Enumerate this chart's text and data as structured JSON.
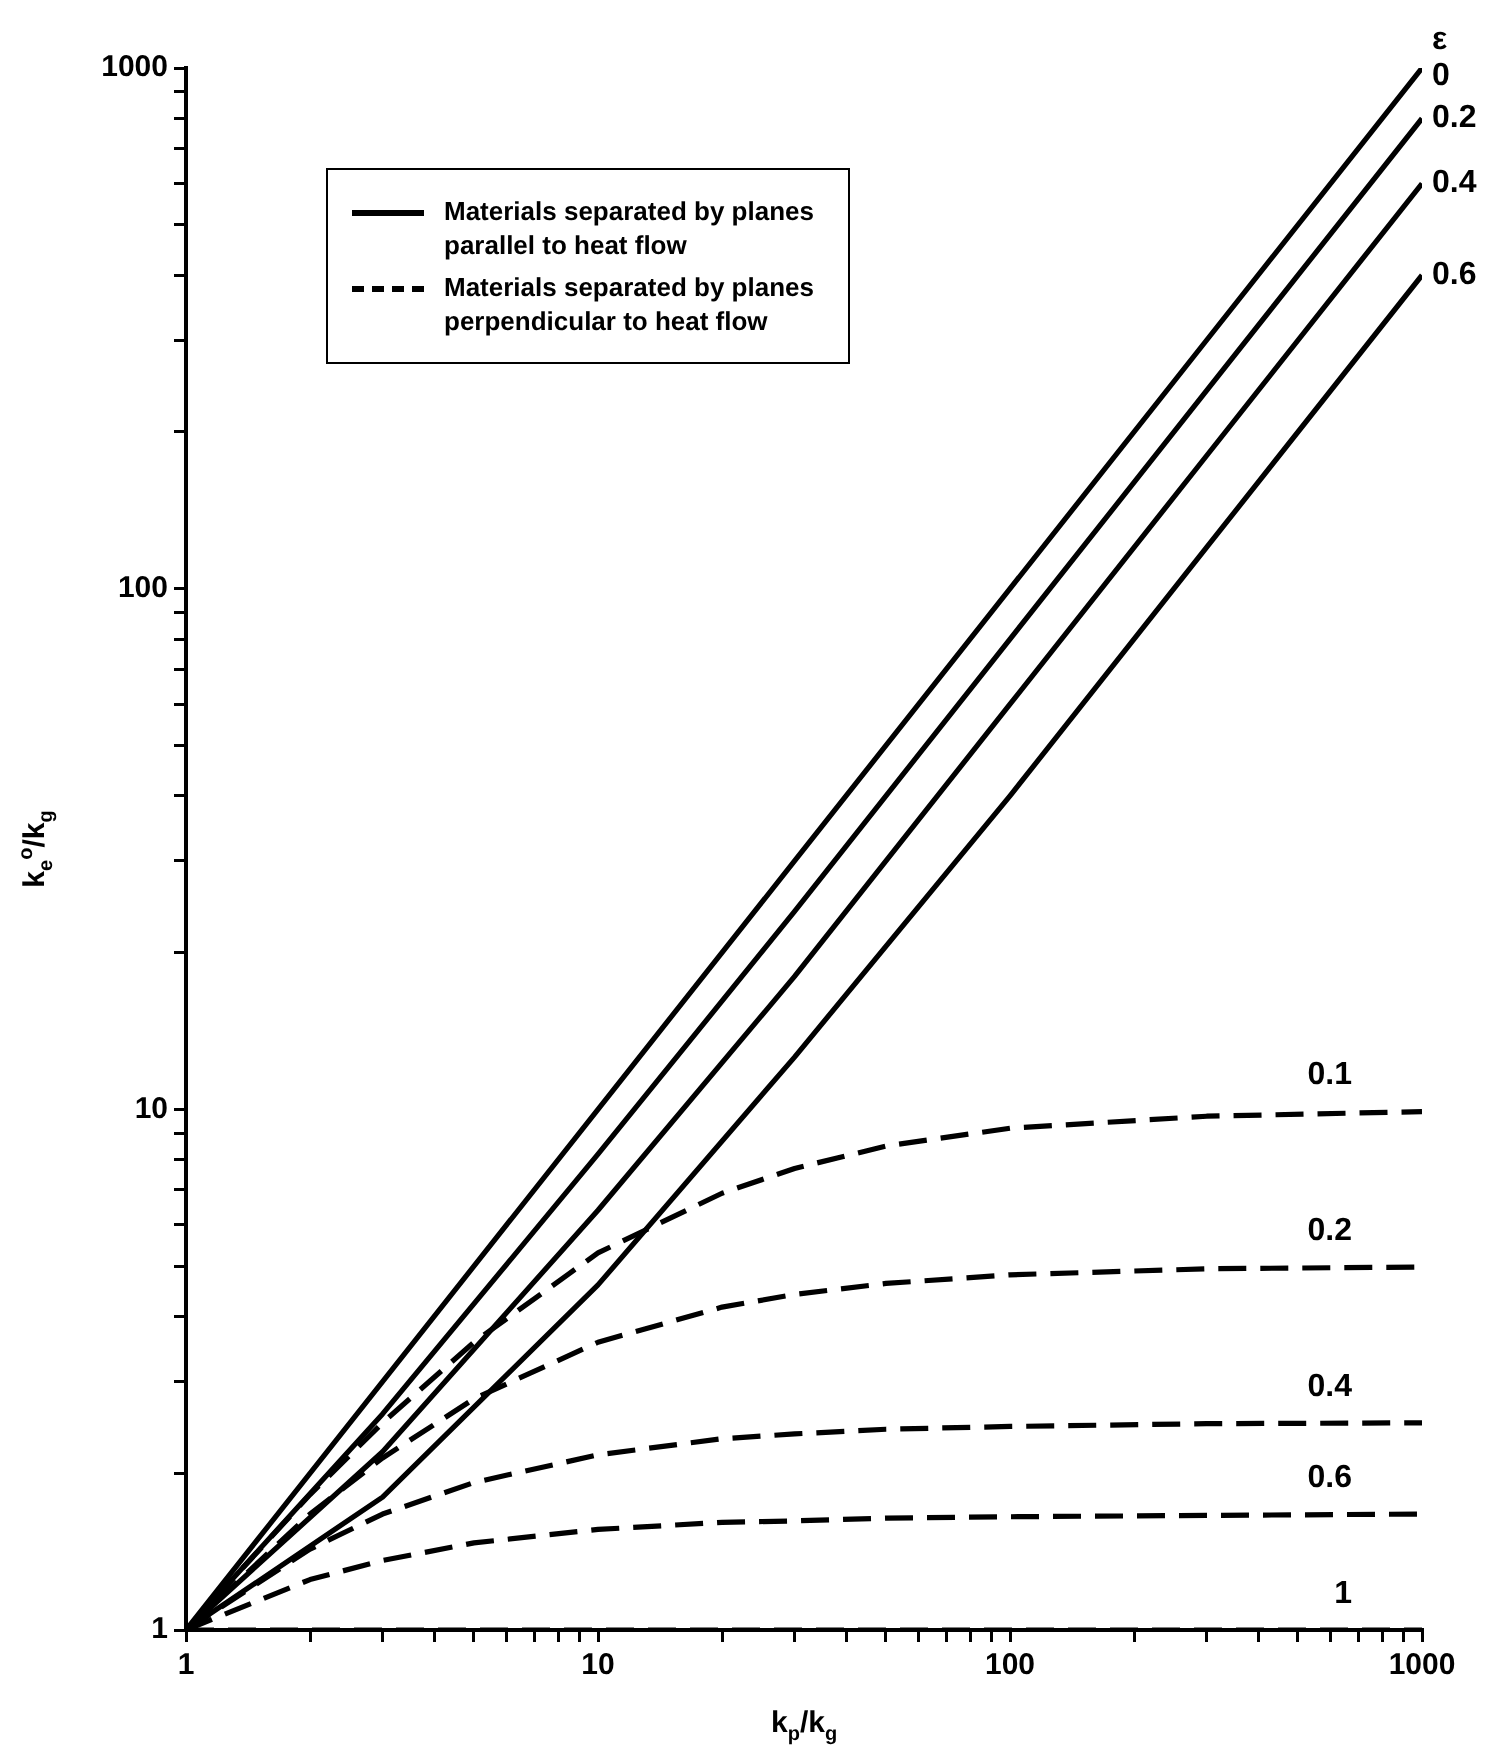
{
  "chart_data": {
    "type": "line",
    "xlabel": "k$_{p}$/k$_{g}$",
    "ylabel": "k$_{e}$$^{o}$/k$_{g}$",
    "log": "xy",
    "grid": false,
    "marker": "none",
    "xlim": [
      1,
      1000
    ],
    "ylim": [
      1,
      1000
    ],
    "xticks": [
      1,
      {
        "value": 2,
        "label": null
      },
      {
        "value": 3,
        "label": null
      },
      {
        "value": 4,
        "label": null
      },
      {
        "value": 5,
        "label": null
      },
      {
        "value": 6,
        "label": null
      },
      {
        "value": 7,
        "label": null
      },
      {
        "value": 8,
        "label": null
      },
      {
        "value": 9,
        "label": null
      },
      10,
      {
        "value": 20,
        "label": null
      },
      {
        "value": 30,
        "label": null
      },
      {
        "value": 40,
        "label": null
      },
      {
        "value": 50,
        "label": null
      },
      {
        "value": 60,
        "label": null
      },
      {
        "value": 70,
        "label": null
      },
      {
        "value": 80,
        "label": null
      },
      {
        "value": 90,
        "label": null
      },
      100,
      {
        "value": 200,
        "label": null
      },
      {
        "value": 300,
        "label": null
      },
      {
        "value": 400,
        "label": null
      },
      {
        "value": 500,
        "label": null
      },
      {
        "value": 600,
        "label": null
      },
      {
        "value": 700,
        "label": null
      },
      {
        "value": 800,
        "label": null
      },
      {
        "value": 900,
        "label": null
      },
      1000
    ],
    "yticks": [
      1,
      {
        "value": 2,
        "label": null
      },
      {
        "value": 3,
        "label": null
      },
      {
        "value": 4,
        "label": null
      },
      {
        "value": 5,
        "label": null
      },
      {
        "value": 6,
        "label": null
      },
      {
        "value": 7,
        "label": null
      },
      {
        "value": 8,
        "label": null
      },
      {
        "value": 9,
        "label": null
      },
      10,
      {
        "value": 20,
        "label": null
      },
      {
        "value": 30,
        "label": null
      },
      {
        "value": 40,
        "label": null
      },
      {
        "value": 50,
        "label": null
      },
      {
        "value": 60,
        "label": null
      },
      {
        "value": 70,
        "label": null
      },
      {
        "value": 80,
        "label": null
      },
      {
        "value": 90,
        "label": null
      },
      100,
      {
        "value": 200,
        "label": null
      },
      {
        "value": 300,
        "label": null
      },
      {
        "value": 400,
        "label": null
      },
      {
        "value": 500,
        "label": null
      },
      {
        "value": 600,
        "label": null
      },
      {
        "value": 700,
        "label": null
      },
      {
        "value": 800,
        "label": null
      },
      {
        "value": 900,
        "label": null
      },
      1000
    ],
    "series": [
      {
        "name": "0",
        "color": "#000000",
        "line_style": "solid",
        "x": [
          1,
          3,
          10,
          30,
          100,
          300,
          1000
        ],
        "values": [
          1,
          3,
          10,
          30,
          100,
          300,
          1000
        ]
      },
      {
        "name": "0.2",
        "color": "#000000",
        "line_style": "solid",
        "x": [
          1,
          3,
          10,
          30,
          100,
          300,
          1000
        ],
        "values": [
          1,
          2.6,
          8.2,
          24,
          80,
          240,
          800
        ]
      },
      {
        "name": "0.4",
        "color": "#000000",
        "line_style": "solid",
        "x": [
          1,
          3,
          10,
          30,
          100,
          300,
          1000
        ],
        "values": [
          1,
          2.2,
          6.4,
          18,
          60,
          180,
          600
        ]
      },
      {
        "name": "0.6",
        "color": "#000000",
        "line_style": "solid",
        "x": [
          1,
          3,
          10,
          30,
          100,
          300,
          1000
        ],
        "values": [
          1,
          1.8,
          4.6,
          12.6,
          40,
          120,
          400
        ]
      },
      {
        "name": "0.1",
        "color": "#000000",
        "line_style": "dashed",
        "x": [
          1,
          2,
          3,
          5,
          10,
          20,
          30,
          50,
          100,
          300,
          1000
        ],
        "values": [
          1,
          1.82,
          2.5,
          3.57,
          5.3,
          6.9,
          7.7,
          8.5,
          9.2,
          9.7,
          9.9
        ]
      },
      {
        "name": "0.2",
        "color": "#000000",
        "line_style": "dashed",
        "x": [
          1,
          2,
          3,
          5,
          10,
          20,
          30,
          50,
          100,
          300,
          1000
        ],
        "values": [
          1,
          1.67,
          2.14,
          2.78,
          3.57,
          4.17,
          4.41,
          4.63,
          4.81,
          4.94,
          4.98
        ]
      },
      {
        "name": "0.4",
        "color": "#000000",
        "line_style": "dashed",
        "x": [
          1,
          2,
          3,
          5,
          10,
          20,
          30,
          50,
          100,
          300,
          1000
        ],
        "values": [
          1,
          1.43,
          1.67,
          1.92,
          2.17,
          2.33,
          2.38,
          2.43,
          2.46,
          2.49,
          2.5
        ]
      },
      {
        "name": "0.6",
        "color": "#000000",
        "line_style": "dashed",
        "x": [
          1,
          2,
          3,
          5,
          10,
          20,
          30,
          50,
          100,
          300,
          1000
        ],
        "values": [
          1,
          1.25,
          1.36,
          1.47,
          1.56,
          1.61,
          1.62,
          1.64,
          1.65,
          1.66,
          1.67
        ]
      },
      {
        "name": "1",
        "color": "#000000",
        "line_style": "dashed",
        "x": [
          1,
          10,
          100,
          1000
        ],
        "values": [
          1,
          1,
          1,
          1
        ]
      }
    ],
    "annotations": [
      "Materials separated by planes parallel to heat flow",
      "Materials separated by planes perpendicular to heat flow",
      "ε"
    ]
  }
}
